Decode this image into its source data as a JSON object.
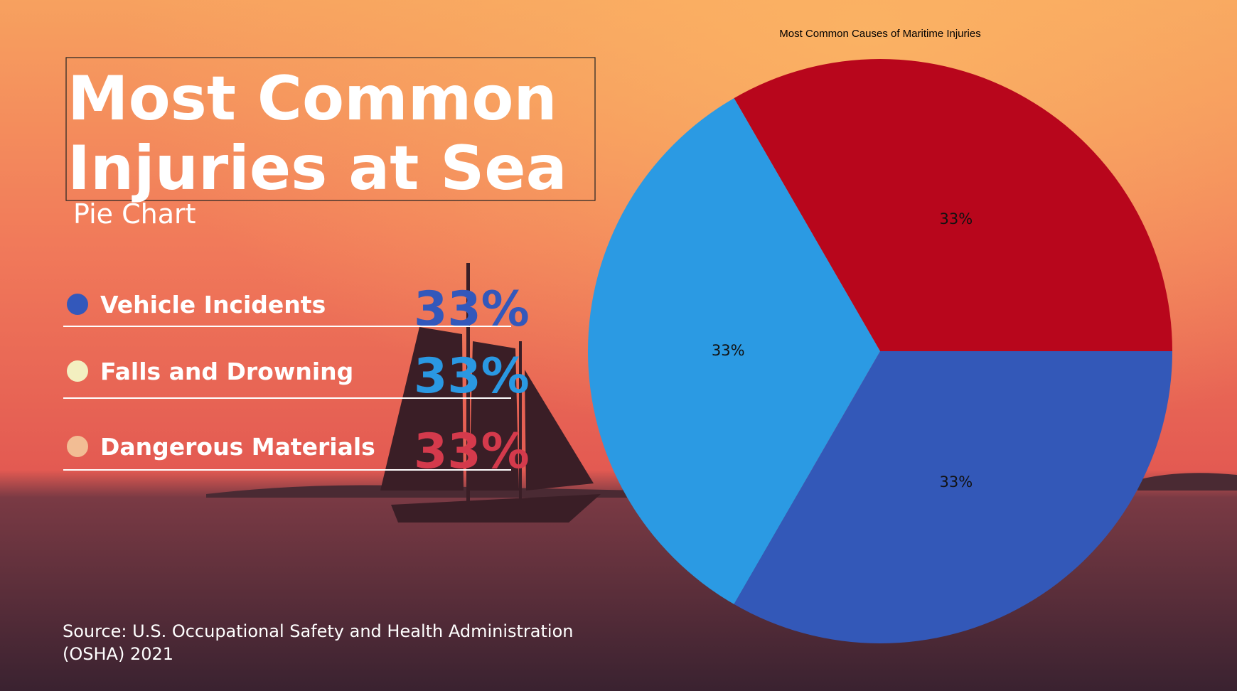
{
  "header": {
    "title_lines": [
      "Most Common",
      "Injuries at Sea"
    ],
    "subtitle": "Pie Chart"
  },
  "legend": {
    "items": [
      {
        "label": "Vehicle Incidents",
        "value": "33%",
        "dot_color": "#3358bb",
        "value_color": "#3358bb"
      },
      {
        "label": "Falls and Drowning",
        "value": "33%",
        "dot_color": "#f3efc0",
        "value_color": "#2a98e2"
      },
      {
        "label": "Dangerous Materials",
        "value": "33%",
        "dot_color": "#f2bd94",
        "value_color": "#d43a4c"
      }
    ]
  },
  "source_lines": [
    "Source: U.S. Occupational Safety and Health Administration",
    "(OSHA) 2021"
  ],
  "chart_data": {
    "type": "pie",
    "title": "Most Common Causes of Maritime Injuries",
    "values": [
      33,
      33,
      33
    ],
    "value_labels": [
      "33%",
      "33%",
      "33%"
    ],
    "colors": [
      "#b8061c",
      "#2b9ae3",
      "#3358b8"
    ]
  }
}
